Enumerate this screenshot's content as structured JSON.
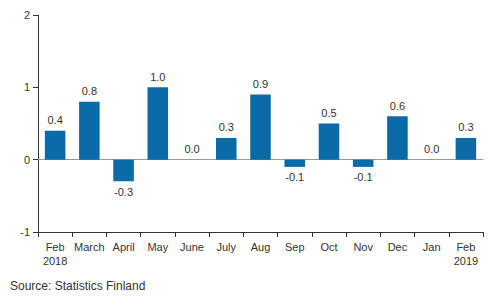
{
  "chart_data": {
    "type": "bar",
    "source": "Source: Statistics Finland",
    "categories": [
      "Feb\n2018",
      "March",
      "April",
      "May",
      "June",
      "July",
      "Aug",
      "Sep",
      "Oct",
      "Nov",
      "Dec",
      "Jan",
      "Feb\n2019"
    ],
    "values": [
      0.4,
      0.8,
      -0.3,
      1.0,
      0.0,
      0.3,
      0.9,
      -0.1,
      0.5,
      -0.1,
      0.6,
      0.0,
      0.3
    ],
    "value_labels": [
      "0.4",
      "0.8",
      "-0.3",
      "1.0",
      "0.0",
      "0.3",
      "0.9",
      "-0.1",
      "0.5",
      "-0.1",
      "0.6",
      "0.0",
      "0.3"
    ],
    "color": "#0b6aa8",
    "ylim": [
      -1,
      2
    ],
    "yticks": [
      -1,
      0,
      1,
      2
    ],
    "grid": false,
    "data_labels": true
  }
}
